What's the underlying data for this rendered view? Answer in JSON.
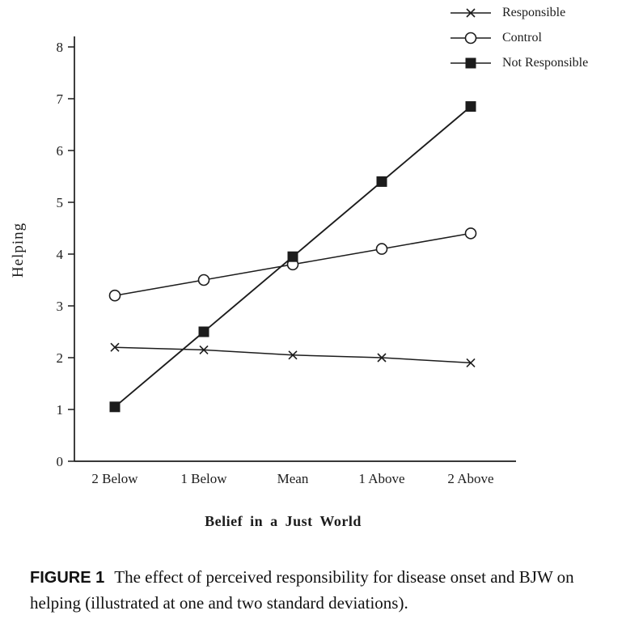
{
  "figure": {
    "caption_label": "FIGURE 1",
    "caption_text": "The effect of perceived responsibility for disease onset and BJW on helping (illustrated at one and two standard deviations)."
  },
  "chart_data": {
    "type": "line",
    "title": "",
    "xlabel": "Belief in a Just World",
    "ylabel": "Helping",
    "categories": [
      "2 Below",
      "1 Below",
      "Mean",
      "1 Above",
      "2 Above"
    ],
    "ylim": [
      0,
      8
    ],
    "yticks": [
      0,
      1,
      2,
      3,
      4,
      5,
      6,
      7,
      8
    ],
    "grid": false,
    "legend_position": "top-right",
    "line_color": "#1c1c1c",
    "series": [
      {
        "name": "Responsible",
        "marker": "x",
        "values": [
          2.2,
          2.15,
          2.05,
          2.0,
          1.9
        ]
      },
      {
        "name": "Control",
        "marker": "circle-open",
        "values": [
          3.2,
          3.5,
          3.8,
          4.1,
          4.4
        ]
      },
      {
        "name": "Not Responsible",
        "marker": "square-filled",
        "values": [
          1.05,
          2.5,
          3.95,
          5.4,
          6.85
        ]
      }
    ]
  }
}
